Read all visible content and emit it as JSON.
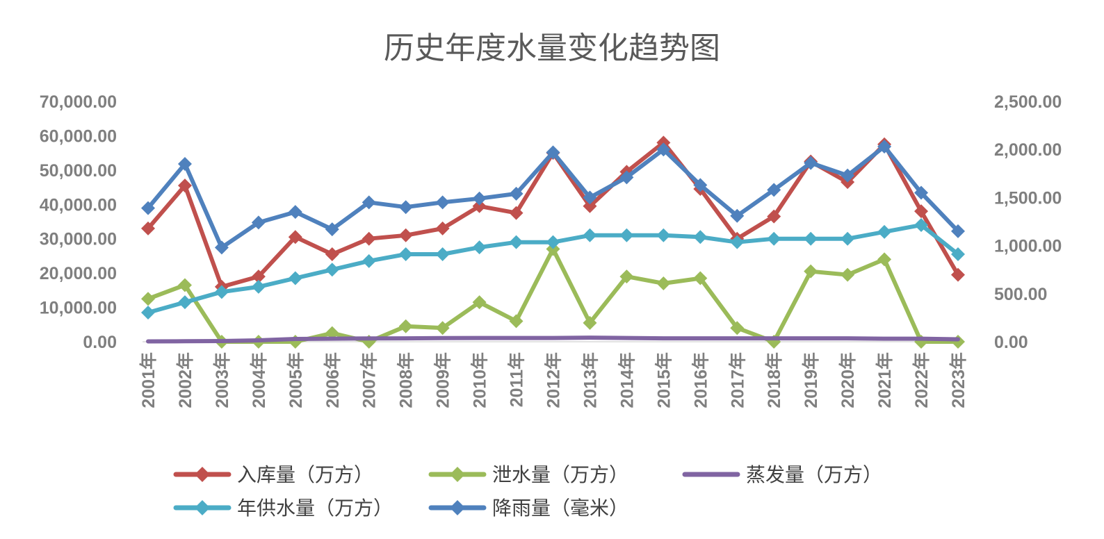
{
  "chart_data": {
    "type": "line",
    "title": "历史年度水量变化趋势图",
    "categories": [
      "2001年",
      "2002年",
      "2003年",
      "2004年",
      "2005年",
      "2006年",
      "2007年",
      "2008年",
      "2009年",
      "2010年",
      "2011年",
      "2012年",
      "2013年",
      "2014年",
      "2015年",
      "2016年",
      "2017年",
      "2018年",
      "2019年",
      "2020年",
      "2021年",
      "2022年",
      "2023年"
    ],
    "y_left": {
      "min": 0,
      "max": 70000,
      "ticks": [
        "0.00",
        "10,000.00",
        "20,000.00",
        "30,000.00",
        "40,000.00",
        "50,000.00",
        "60,000.00",
        "70,000.00"
      ]
    },
    "y_right": {
      "min": 0,
      "max": 2500,
      "ticks": [
        "0.00",
        "500.00",
        "1,000.00",
        "1,500.00",
        "2,000.00",
        "2,500.00"
      ]
    },
    "grid": false,
    "legend_position": "bottom",
    "series": [
      {
        "name": "入库量（万方）",
        "axis": "left",
        "color": "#c0504d",
        "marker": "diamond",
        "values": [
          33000,
          45500,
          16000,
          19000,
          30500,
          25500,
          30000,
          31000,
          33000,
          39500,
          37500,
          55000,
          39500,
          49500,
          58000,
          44500,
          30000,
          36500,
          52500,
          46500,
          57500,
          38000,
          19500
        ]
      },
      {
        "name": "泄水量（万方）",
        "axis": "left",
        "color": "#9bbb59",
        "marker": "diamond",
        "values": [
          12500,
          16500,
          0,
          0,
          0,
          2500,
          0,
          4500,
          4000,
          11500,
          6000,
          27000,
          5500,
          19000,
          17000,
          18500,
          4000,
          0,
          20500,
          19500,
          24000,
          0,
          0
        ]
      },
      {
        "name": "蒸发量（万方）",
        "axis": "left",
        "color": "#8064a2",
        "marker": "none",
        "values": [
          100,
          150,
          200,
          400,
          800,
          900,
          950,
          1000,
          1050,
          1100,
          1100,
          1100,
          1200,
          1100,
          1000,
          1000,
          1000,
          1000,
          1000,
          1000,
          900,
          900,
          700
        ]
      },
      {
        "name": "年供水量（万方）",
        "axis": "left",
        "color": "#4bacc6",
        "marker": "diamond",
        "values": [
          8500,
          11500,
          14500,
          16000,
          18500,
          21000,
          23500,
          25500,
          25500,
          27500,
          29000,
          29000,
          31000,
          31000,
          31000,
          30500,
          29000,
          30000,
          30000,
          30000,
          32000,
          34000,
          25500
        ]
      },
      {
        "name": "降雨量（毫米）",
        "axis": "right",
        "color": "#4f81bd",
        "marker": "diamond",
        "values": [
          1390,
          1850,
          980,
          1240,
          1350,
          1170,
          1450,
          1400,
          1450,
          1490,
          1540,
          1970,
          1500,
          1710,
          2000,
          1630,
          1310,
          1580,
          1860,
          1730,
          2030,
          1550,
          1150
        ]
      }
    ]
  }
}
